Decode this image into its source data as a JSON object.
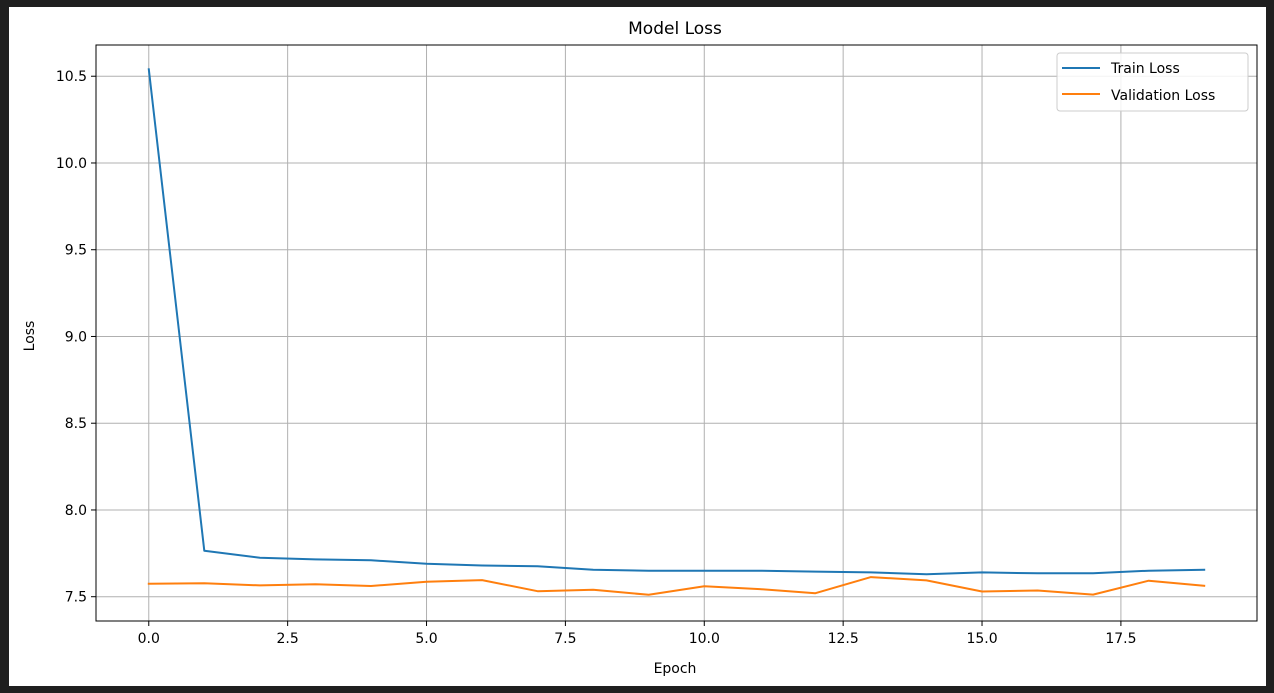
{
  "chart_data": {
    "type": "line",
    "title": "Model Loss",
    "xlabel": "Epoch",
    "ylabel": "Loss",
    "xlim": [
      -0.95,
      19.95
    ],
    "ylim": [
      7.36,
      10.68
    ],
    "xticks": [
      0.0,
      2.5,
      5.0,
      7.5,
      10.0,
      12.5,
      15.0,
      17.5
    ],
    "xtick_labels": [
      "0.0",
      "2.5",
      "5.0",
      "7.5",
      "10.0",
      "12.5",
      "15.0",
      "17.5"
    ],
    "yticks": [
      7.5,
      8.0,
      8.5,
      9.0,
      9.5,
      10.0,
      10.5
    ],
    "ytick_labels": [
      "7.5",
      "8.0",
      "8.5",
      "9.0",
      "9.5",
      "10.0",
      "10.5"
    ],
    "grid": true,
    "legend_position": "top-right",
    "x": [
      0,
      1,
      2,
      3,
      4,
      5,
      6,
      7,
      8,
      9,
      10,
      11,
      12,
      13,
      14,
      15,
      16,
      17,
      18,
      19
    ],
    "series": [
      {
        "name": "Train Loss",
        "color": "#1f77b4",
        "values": [
          10.54,
          7.765,
          7.725,
          7.715,
          7.71,
          7.69,
          7.68,
          7.675,
          7.655,
          7.65,
          7.65,
          7.65,
          7.645,
          7.64,
          7.63,
          7.64,
          7.635,
          7.635,
          7.65,
          7.655
        ]
      },
      {
        "name": "Validation Loss",
        "color": "#ff7f0e",
        "values": [
          7.575,
          7.578,
          7.565,
          7.572,
          7.562,
          7.586,
          7.596,
          7.532,
          7.54,
          7.511,
          7.56,
          7.544,
          7.52,
          7.613,
          7.594,
          7.53,
          7.536,
          7.512,
          7.592,
          7.563
        ]
      }
    ]
  }
}
